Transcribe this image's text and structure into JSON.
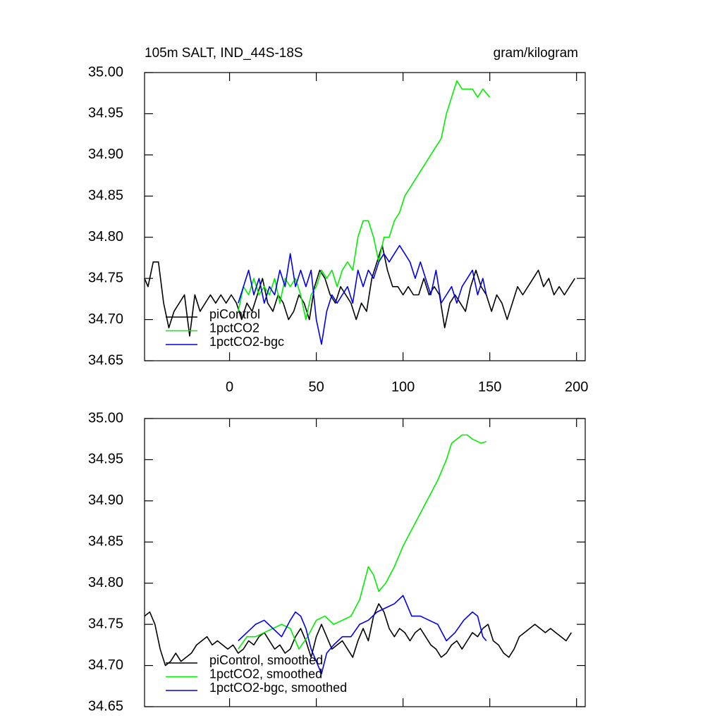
{
  "chart_data": [
    {
      "type": "line",
      "title": "105m SALT, IND_44S-18S",
      "units": "gram/kilogram",
      "xlim": [
        -49,
        205
      ],
      "xticks": [
        0,
        50,
        100,
        150,
        200
      ],
      "ylim": [
        34.65,
        35.0
      ],
      "yticks": [
        34.65,
        {
          "value": 34.7,
          "label": "34.70"
        },
        34.75,
        {
          "value": 34.8,
          "label": "34.80"
        },
        34.85,
        {
          "value": 34.9,
          "label": "34.90"
        },
        34.95,
        {
          "value": 35.0,
          "label": "35.00"
        }
      ],
      "legend": "lower left",
      "series": [
        {
          "name": "piControl",
          "color": "#000000",
          "x": [
            -49,
            -47,
            -44,
            -41,
            -38,
            -35,
            -32,
            -29,
            -26,
            -23,
            -20,
            -17,
            -14,
            -11,
            -8,
            -5,
            -2,
            1,
            4,
            7,
            10,
            13,
            16,
            19,
            22,
            25,
            28,
            31,
            34,
            37,
            40,
            43,
            46,
            49,
            52,
            55,
            58,
            61,
            64,
            67,
            70,
            73,
            76,
            79,
            82,
            85,
            88,
            91,
            94,
            97,
            100,
            103,
            106,
            109,
            112,
            115,
            118,
            121,
            124,
            127,
            130,
            133,
            136,
            139,
            142,
            145,
            148,
            151,
            154,
            157,
            160,
            163,
            166,
            169,
            172,
            175,
            178,
            181,
            184,
            187,
            190,
            193,
            196,
            199
          ],
          "values": [
            34.75,
            34.74,
            34.77,
            34.77,
            34.72,
            34.69,
            34.71,
            34.72,
            34.73,
            34.68,
            34.73,
            34.71,
            34.72,
            34.73,
            34.72,
            34.73,
            34.72,
            34.73,
            34.72,
            34.7,
            34.72,
            34.71,
            34.73,
            34.75,
            34.72,
            34.71,
            34.73,
            34.72,
            34.7,
            34.71,
            34.73,
            34.72,
            34.7,
            34.74,
            34.76,
            34.75,
            34.73,
            34.72,
            34.74,
            34.73,
            34.72,
            34.7,
            34.72,
            34.71,
            34.75,
            34.77,
            34.79,
            34.76,
            34.74,
            34.74,
            34.73,
            34.74,
            34.73,
            34.73,
            34.75,
            34.73,
            34.74,
            34.73,
            34.69,
            34.72,
            34.73,
            34.72,
            34.71,
            34.74,
            34.76,
            34.74,
            34.73,
            34.71,
            34.73,
            34.72,
            34.7,
            34.72,
            34.74,
            34.73,
            34.74,
            34.75,
            34.76,
            34.74,
            34.75,
            34.73,
            34.74,
            34.73,
            34.74,
            34.75
          ]
        },
        {
          "name": "1pctCO2",
          "color": "#00ee00",
          "x": [
            5,
            8,
            11,
            14,
            17,
            20,
            23,
            26,
            29,
            32,
            35,
            38,
            41,
            44,
            47,
            50,
            53,
            56,
            59,
            62,
            65,
            68,
            71,
            74,
            77,
            80,
            83,
            86,
            89,
            92,
            95,
            98,
            101,
            104,
            107,
            110,
            113,
            116,
            119,
            122,
            125,
            128,
            131,
            134,
            137,
            140,
            143,
            146,
            150
          ],
          "values": [
            34.71,
            34.74,
            34.73,
            34.75,
            34.73,
            34.74,
            34.73,
            34.75,
            34.72,
            34.75,
            34.74,
            34.75,
            34.73,
            34.7,
            34.73,
            34.74,
            34.76,
            34.75,
            34.76,
            34.74,
            34.76,
            34.77,
            34.76,
            34.8,
            34.82,
            34.82,
            34.8,
            34.77,
            34.8,
            34.8,
            34.82,
            34.83,
            34.85,
            34.86,
            34.87,
            34.88,
            34.89,
            34.9,
            34.91,
            34.92,
            34.95,
            34.97,
            34.99,
            34.98,
            34.98,
            34.98,
            34.97,
            34.98,
            34.97
          ]
        },
        {
          "name": "1pctCO2-bgc",
          "color": "#0000ee",
          "x": [
            5,
            8,
            11,
            14,
            17,
            20,
            23,
            26,
            29,
            32,
            35,
            38,
            41,
            44,
            47,
            50,
            53,
            56,
            59,
            62,
            65,
            68,
            71,
            74,
            77,
            80,
            83,
            86,
            89,
            92,
            95,
            98,
            101,
            104,
            107,
            110,
            113,
            116,
            119,
            122,
            125,
            128,
            131,
            134,
            137,
            140,
            143,
            146,
            148
          ],
          "values": [
            34.72,
            34.74,
            34.76,
            34.73,
            34.75,
            34.72,
            34.74,
            34.73,
            34.76,
            34.74,
            34.78,
            34.74,
            34.76,
            34.74,
            34.76,
            34.7,
            34.67,
            34.71,
            34.73,
            34.72,
            34.73,
            34.74,
            34.72,
            34.76,
            34.74,
            34.76,
            34.75,
            34.77,
            34.78,
            34.77,
            34.78,
            34.79,
            34.78,
            34.77,
            34.75,
            34.77,
            34.75,
            34.73,
            34.76,
            34.72,
            34.73,
            34.74,
            34.72,
            34.74,
            34.75,
            34.76,
            34.73,
            34.75,
            34.73
          ]
        }
      ]
    },
    {
      "type": "line",
      "xlim": [
        -49,
        205
      ],
      "ylim": [
        34.65,
        35.0
      ],
      "yticks": [
        34.65,
        {
          "value": 34.7,
          "label": "34.70"
        },
        34.75,
        {
          "value": 34.8,
          "label": "34.80"
        },
        34.85,
        {
          "value": 34.9,
          "label": "34.90"
        },
        34.95,
        {
          "value": 35.0,
          "label": "35.00"
        }
      ],
      "legend": "lower left",
      "series": [
        {
          "name": "piControl, smoothed",
          "color": "#000000",
          "x": [
            -49,
            -46,
            -43,
            -40,
            -37,
            -34,
            -31,
            -28,
            -25,
            -22,
            -19,
            -16,
            -13,
            -10,
            -7,
            -4,
            -1,
            2,
            5,
            8,
            11,
            14,
            17,
            20,
            23,
            26,
            29,
            32,
            35,
            38,
            41,
            44,
            47,
            50,
            53,
            56,
            59,
            62,
            65,
            68,
            71,
            74,
            77,
            80,
            83,
            86,
            89,
            92,
            95,
            98,
            101,
            104,
            107,
            110,
            113,
            116,
            119,
            122,
            125,
            128,
            131,
            134,
            137,
            140,
            143,
            146,
            149,
            152,
            155,
            158,
            161,
            164,
            167,
            170,
            173,
            176,
            179,
            182,
            185,
            188,
            191,
            194,
            197
          ],
          "values": [
            34.76,
            34.765,
            34.75,
            34.72,
            34.7,
            34.705,
            34.715,
            34.705,
            34.71,
            34.715,
            34.725,
            34.73,
            34.735,
            34.725,
            34.73,
            34.725,
            34.72,
            34.725,
            34.715,
            34.72,
            34.73,
            34.725,
            34.735,
            34.74,
            34.73,
            34.72,
            34.725,
            34.715,
            34.72,
            34.735,
            34.745,
            34.73,
            34.71,
            34.735,
            34.75,
            34.735,
            34.72,
            34.725,
            34.73,
            34.72,
            34.71,
            34.73,
            34.745,
            34.73,
            34.76,
            34.775,
            34.765,
            34.745,
            34.735,
            34.745,
            34.74,
            34.73,
            34.74,
            34.745,
            34.735,
            34.725,
            34.72,
            34.71,
            34.715,
            34.725,
            34.73,
            34.72,
            34.73,
            34.74,
            34.735,
            34.745,
            34.75,
            34.73,
            34.725,
            34.715,
            34.71,
            34.72,
            34.735,
            34.74,
            34.745,
            34.75,
            34.745,
            34.74,
            34.745,
            34.74,
            34.735,
            34.73,
            34.74
          ]
        },
        {
          "name": "1pctCO2, smoothed",
          "color": "#00ee00",
          "x": [
            5,
            10,
            15,
            20,
            25,
            30,
            35,
            40,
            45,
            50,
            55,
            60,
            65,
            70,
            75,
            80,
            83,
            86,
            90,
            95,
            100,
            105,
            110,
            115,
            120,
            125,
            128,
            131,
            134,
            137,
            140,
            145,
            148
          ],
          "values": [
            34.72,
            34.735,
            34.735,
            34.74,
            34.745,
            34.75,
            34.745,
            34.72,
            34.735,
            34.755,
            34.76,
            34.75,
            34.755,
            34.76,
            34.78,
            34.82,
            34.81,
            34.79,
            34.8,
            34.82,
            34.845,
            34.865,
            34.885,
            34.905,
            34.925,
            34.95,
            34.97,
            34.975,
            34.98,
            34.98,
            34.975,
            34.97,
            34.972
          ]
        },
        {
          "name": "1pctCO2-bgc, smoothed",
          "color": "#0000ee",
          "x": [
            5,
            10,
            15,
            20,
            25,
            30,
            35,
            38,
            41,
            44,
            47,
            50,
            53,
            56,
            60,
            65,
            70,
            75,
            80,
            85,
            90,
            95,
            100,
            105,
            110,
            115,
            120,
            125,
            130,
            135,
            140,
            143,
            146,
            148
          ],
          "values": [
            34.73,
            34.74,
            34.75,
            34.755,
            34.745,
            34.735,
            34.755,
            34.765,
            34.76,
            34.745,
            34.72,
            34.705,
            34.69,
            34.715,
            34.725,
            34.735,
            34.735,
            34.75,
            34.755,
            34.765,
            34.77,
            34.775,
            34.785,
            34.76,
            34.76,
            34.755,
            34.75,
            34.73,
            34.74,
            34.755,
            34.765,
            34.76,
            34.735,
            34.73
          ]
        }
      ]
    }
  ]
}
